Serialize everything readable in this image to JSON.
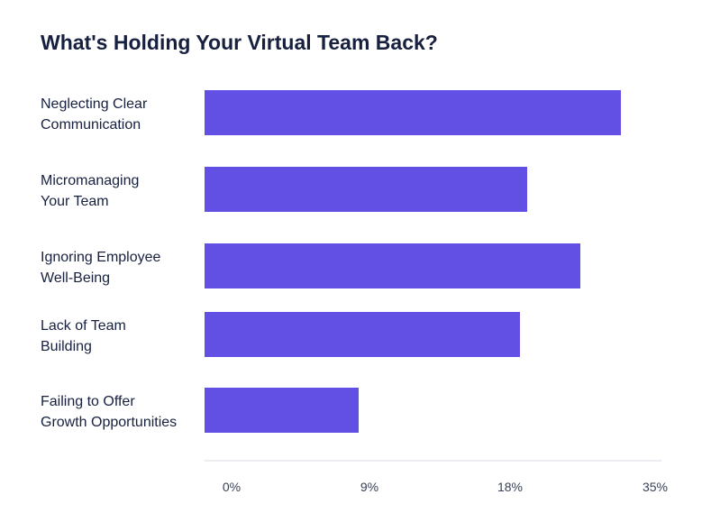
{
  "chart_data": {
    "type": "bar",
    "orientation": "horizontal",
    "title": "What's Holding Your Virtual Team Back?",
    "xlabel": "",
    "ylabel": "",
    "categories": [
      [
        "Neglecting Clear",
        "Communication"
      ],
      [
        "Micromanaging",
        "Your Team"
      ],
      [
        "Ignoring Employee",
        "Well-Being"
      ],
      [
        "Lack of Team",
        "Building"
      ],
      [
        "Failing to Offer",
        "Growth Opportunities"
      ]
    ],
    "values": [
      31,
      24,
      28,
      23.5,
      11.5
    ],
    "x_ticks": [
      {
        "value": 0,
        "label": "0%"
      },
      {
        "value": 9,
        "label": "9%"
      },
      {
        "value": 18,
        "label": "18%"
      },
      {
        "value": 35,
        "label": "35%"
      }
    ],
    "xlim": [
      0,
      35
    ],
    "bar_color": "#6150e3",
    "grid": false,
    "legend": "none"
  }
}
